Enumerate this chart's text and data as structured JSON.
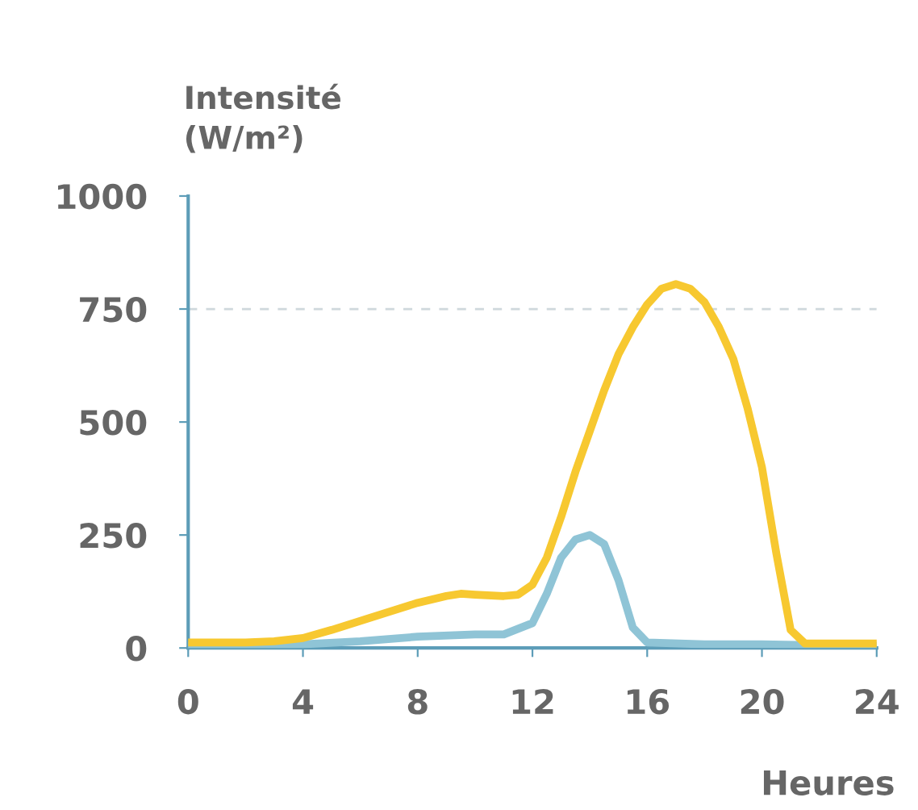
{
  "chart_data": {
    "type": "line",
    "ylabel": "Intensité\n(W/m²)",
    "xlabel": "Heures",
    "xlim": [
      0,
      24
    ],
    "ylim": [
      0,
      1000
    ],
    "xticks": [
      0,
      4,
      8,
      12,
      16,
      20,
      24
    ],
    "yticks": [
      0,
      250,
      500,
      750,
      1000
    ],
    "ref_lines": [
      {
        "axis": "y",
        "value": 750,
        "color": "#cfd8dc",
        "line_style": "dashed"
      }
    ],
    "series": [
      {
        "color": "#8fc4d6",
        "x": [
          0,
          2,
          4,
          6,
          8,
          10,
          11,
          12,
          12.5,
          13,
          13.5,
          14,
          14.5,
          15,
          15.5,
          16,
          18,
          20,
          22,
          24
        ],
        "values": [
          5,
          5,
          8,
          15,
          25,
          30,
          30,
          55,
          120,
          200,
          240,
          250,
          230,
          150,
          45,
          12,
          8,
          8,
          6,
          5
        ]
      },
      {
        "color": "#f7c830",
        "x": [
          0,
          2,
          3,
          4,
          5,
          6,
          7,
          8,
          9,
          9.5,
          10,
          11,
          11.5,
          12,
          12.5,
          13,
          13.5,
          14,
          14.5,
          15,
          15.5,
          16,
          16.5,
          17,
          17.5,
          18,
          18.5,
          19,
          19.5,
          20,
          20.5,
          21,
          21.5,
          22,
          24
        ],
        "values": [
          12,
          12,
          15,
          22,
          40,
          60,
          80,
          100,
          115,
          120,
          118,
          115,
          118,
          140,
          200,
          290,
          390,
          480,
          570,
          650,
          710,
          760,
          795,
          805,
          795,
          765,
          710,
          640,
          530,
          400,
          210,
          40,
          10,
          10,
          10
        ]
      }
    ]
  }
}
